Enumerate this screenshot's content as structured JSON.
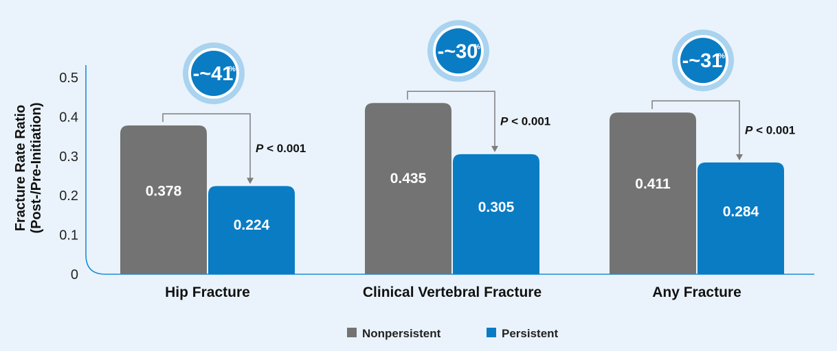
{
  "chart_data": {
    "type": "bar",
    "ylabel": "Fracture Rate Ratio",
    "ylabel_line2": "(Post-/Pre-Initiation)",
    "ylim": [
      0,
      0.5
    ],
    "ytick_values": [
      0,
      0.1,
      0.2,
      0.3,
      0.4,
      0.5
    ],
    "ytick_labels": [
      "0",
      "0.1",
      "0.2",
      "0.3",
      "0.4",
      "0.5"
    ],
    "categories": [
      "Hip Fracture",
      "Clinical Vertebral Fracture",
      "Any Fracture"
    ],
    "series": [
      {
        "name": "Nonpersistent",
        "color": "#737373",
        "values": [
          0.378,
          0.435,
          0.411
        ],
        "labels": [
          "0.378",
          "0.435",
          "0.411"
        ]
      },
      {
        "name": "Persistent",
        "color": "#0a7cc4",
        "values": [
          0.224,
          0.305,
          0.284
        ],
        "labels": [
          "0.224",
          "0.305",
          "0.284"
        ]
      }
    ],
    "reductions": [
      {
        "value": "-~41",
        "unit": "%"
      },
      {
        "value": "-~30",
        "unit": "%"
      },
      {
        "value": "-~31",
        "unit": "%"
      }
    ],
    "p_values": [
      {
        "italic": "P",
        "text": " < 0.001"
      },
      {
        "italic": "P",
        "text": " < 0.001"
      },
      {
        "italic": "P",
        "text": " < 0.001"
      }
    ],
    "legend_position": "bottom-center",
    "grid": false
  }
}
